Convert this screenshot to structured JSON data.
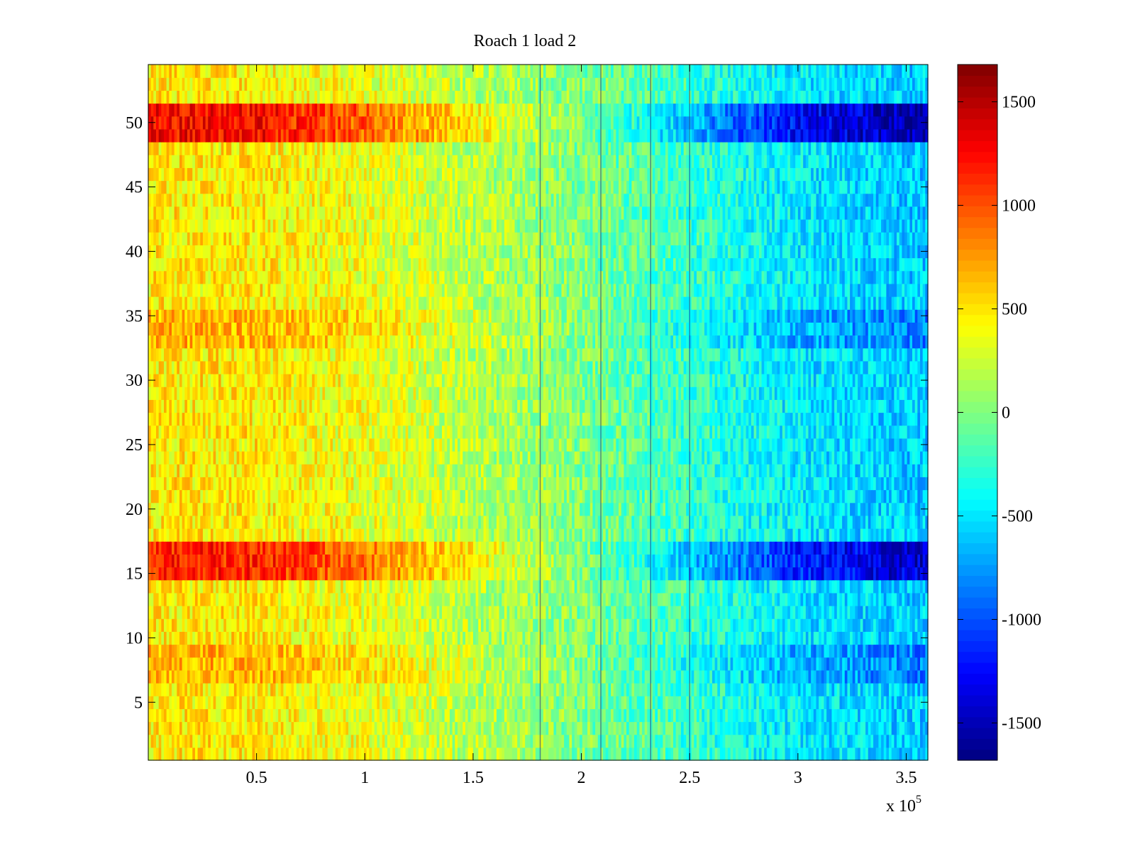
{
  "chart_data": {
    "type": "heatmap",
    "title": "Roach 1 load 2",
    "xlabel": "",
    "ylabel": "",
    "xlim": [
      0,
      360000
    ],
    "ylim": [
      0.5,
      54.5
    ],
    "x_ticks": [
      50000,
      100000,
      150000,
      200000,
      250000,
      300000,
      350000
    ],
    "x_tick_labels": [
      "0.5",
      "1",
      "1.5",
      "2",
      "2.5",
      "3",
      "3.5"
    ],
    "x_exponent_label": "x 10",
    "x_exponent_power": "5",
    "y_ticks": [
      5,
      10,
      15,
      20,
      25,
      30,
      35,
      40,
      45,
      50
    ],
    "y_tick_labels": [
      "5",
      "10",
      "15",
      "20",
      "25",
      "30",
      "35",
      "40",
      "45",
      "50"
    ],
    "rows": 54,
    "colormap": "jet",
    "colorbar": {
      "clim": [
        -1680,
        1680
      ],
      "ticks": [
        -1500,
        -1000,
        -500,
        0,
        500,
        1000,
        1500
      ],
      "tick_labels": [
        "-1500",
        "-1000",
        "-500",
        "0",
        "500",
        "1000",
        "1500"
      ]
    },
    "trend_x": [
      0,
      50000,
      100000,
      150000,
      200000,
      250000,
      300000,
      350000,
      360000
    ],
    "trend_values": [
      480,
      480,
      360,
      180,
      0,
      -250,
      -480,
      -580,
      -590
    ],
    "row_amplitude": [
      {
        "rows": [
          49,
          51
        ],
        "factor": 2.6
      },
      {
        "rows": [
          15,
          17
        ],
        "factor": 2.4
      },
      {
        "rows": [
          33,
          35
        ],
        "factor": 1.4
      },
      {
        "rows": [
          7,
          9
        ],
        "factor": 1.4
      }
    ],
    "dark_columns_x": [
      181000,
      209000,
      232000,
      250000
    ],
    "grid": false
  }
}
